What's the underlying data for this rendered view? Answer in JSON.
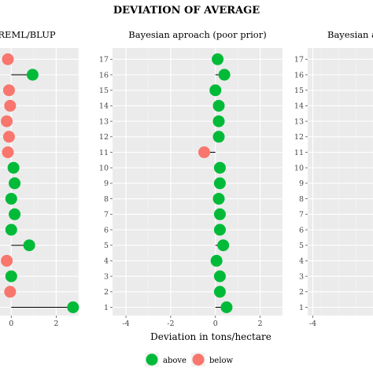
{
  "chart_data": {
    "type": "scatter",
    "title": "DEVIATION OF AVERAGE",
    "xlabel": "Deviation in tons/hectare",
    "legend": [
      {
        "name": "above",
        "color": "#00ba38"
      },
      {
        "name": "below",
        "color": "#f8766d"
      }
    ],
    "legend_position": "bottom",
    "grid": true,
    "y_categories": [
      "1",
      "2",
      "3",
      "4",
      "5",
      "6",
      "7",
      "8",
      "9",
      "10",
      "11",
      "12",
      "13",
      "14",
      "15",
      "16",
      "17"
    ],
    "panels": [
      {
        "title": "REML/BLUP",
        "xlim": [
          -0.5,
          3.0
        ],
        "x_ticks": [
          0,
          2
        ],
        "show_y_ticks": false,
        "values": [
          2.75,
          -0.05,
          0.0,
          -0.2,
          0.8,
          0.0,
          0.15,
          0.0,
          0.15,
          0.1,
          -0.15,
          -0.1,
          -0.2,
          -0.05,
          -0.1,
          0.95,
          -0.15
        ]
      },
      {
        "title": "Bayesian aproach (poor prior)",
        "xlim": [
          -4.6,
          3.0
        ],
        "x_ticks": [
          -4,
          -2,
          0,
          2
        ],
        "show_y_ticks": true,
        "values": [
          0.5,
          0.2,
          0.2,
          0.05,
          0.35,
          0.2,
          0.2,
          0.15,
          0.2,
          0.2,
          -0.5,
          0.15,
          0.15,
          0.15,
          0.0,
          0.4,
          0.1
        ]
      },
      {
        "title": "Bayesian a",
        "xlim": [
          -4.6,
          3.0
        ],
        "x_ticks": [
          -4
        ],
        "show_y_ticks": true,
        "values": []
      }
    ]
  }
}
